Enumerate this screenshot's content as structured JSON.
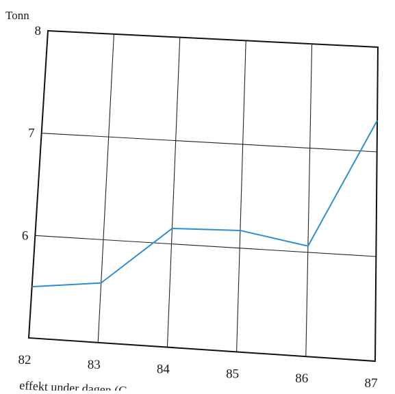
{
  "chart_data": {
    "type": "line",
    "title": "",
    "xlabel": "",
    "ylabel": "Tonn",
    "x": [
      82,
      83,
      84,
      85,
      86,
      87
    ],
    "x_tick_labels": [
      "82",
      "83",
      "84",
      "85",
      "86",
      "87"
    ],
    "y_ticks": [
      6,
      7,
      8
    ],
    "y_tick_labels": [
      "6",
      "7",
      "8"
    ],
    "xlim": [
      82,
      87
    ],
    "ylim": [
      5,
      8
    ],
    "grid": true,
    "series": [
      {
        "x": [
          82,
          83,
          84,
          85,
          86,
          87
        ],
        "values": [
          5.5,
          5.58,
          6.15,
          6.17,
          6.06,
          7.3
        ],
        "color": "#2a8fd4"
      }
    ],
    "caption": "effekt under dagen (G"
  }
}
